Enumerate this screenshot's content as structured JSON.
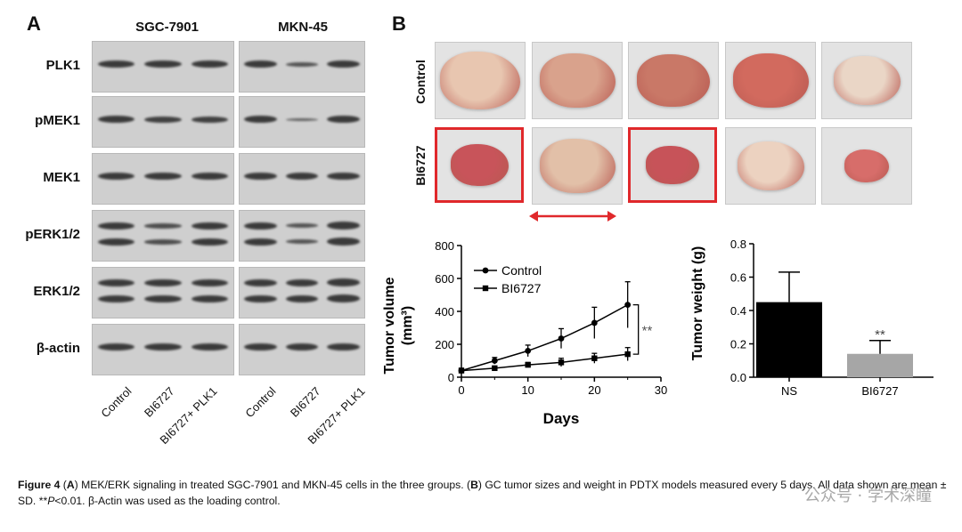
{
  "panelA": {
    "letter": "A",
    "cell_lines": [
      "SGC-7901",
      "MKN-45"
    ],
    "rows": [
      "PLK1",
      "pMEK1",
      "MEK1",
      "pERK1/2",
      "ERK1/2",
      "β-actin"
    ],
    "lanes": [
      "Control",
      "BI6727",
      "BI6727+ PLK1"
    ]
  },
  "panelB": {
    "letter": "B",
    "row_labels": [
      "Control",
      "BI6727"
    ]
  },
  "chart_data": [
    {
      "type": "line",
      "xlabel": "Days",
      "ylabel": "Tumor volume",
      "ylabel_unit": "(mm³)",
      "xlim": [
        0,
        30
      ],
      "ylim": [
        0,
        800
      ],
      "x_ticks": [
        "0",
        "10",
        "20",
        "30"
      ],
      "y_ticks": [
        "0",
        "200",
        "400",
        "600",
        "800"
      ],
      "x": [
        0,
        5,
        10,
        15,
        20,
        25
      ],
      "series": [
        {
          "name": "Control",
          "marker": "circle",
          "values": [
            40,
            100,
            160,
            235,
            330,
            440
          ],
          "sd": [
            15,
            20,
            35,
            60,
            95,
            140
          ]
        },
        {
          "name": "BI6727",
          "marker": "square",
          "values": [
            40,
            55,
            75,
            90,
            115,
            140
          ],
          "sd": [
            10,
            10,
            15,
            25,
            30,
            40
          ]
        }
      ],
      "significance": "**"
    },
    {
      "type": "bar",
      "ylabel": "Tumor weight (g)",
      "ylim": [
        0,
        0.8
      ],
      "y_ticks": [
        "0.0",
        "0.2",
        "0.4",
        "0.6",
        "0.8"
      ],
      "categories": [
        "NS",
        "BI6727"
      ],
      "values": [
        0.45,
        0.14
      ],
      "sd": [
        0.18,
        0.08
      ],
      "colors": [
        "#000000",
        "#a6a6a6"
      ],
      "significance": "**"
    }
  ],
  "caption": {
    "fig": "Figure 4",
    "text_parts": [
      " (",
      "A",
      ") MEK/ERK signaling in treated SGC-7901 and MKN-45 cells in the three groups. (",
      "B",
      ") GC tumor sizes and weight in PDTX models measured every 5 days. All data shown are mean ± SD. **",
      "P",
      "<0.01. β-Actin was used as the loading control."
    ]
  },
  "watermark": "公众号 · 学术深瞳",
  "colors": {
    "highlight": "#e0282b",
    "bar_ns": "#000000",
    "bar_bi": "#a6a6a6"
  }
}
